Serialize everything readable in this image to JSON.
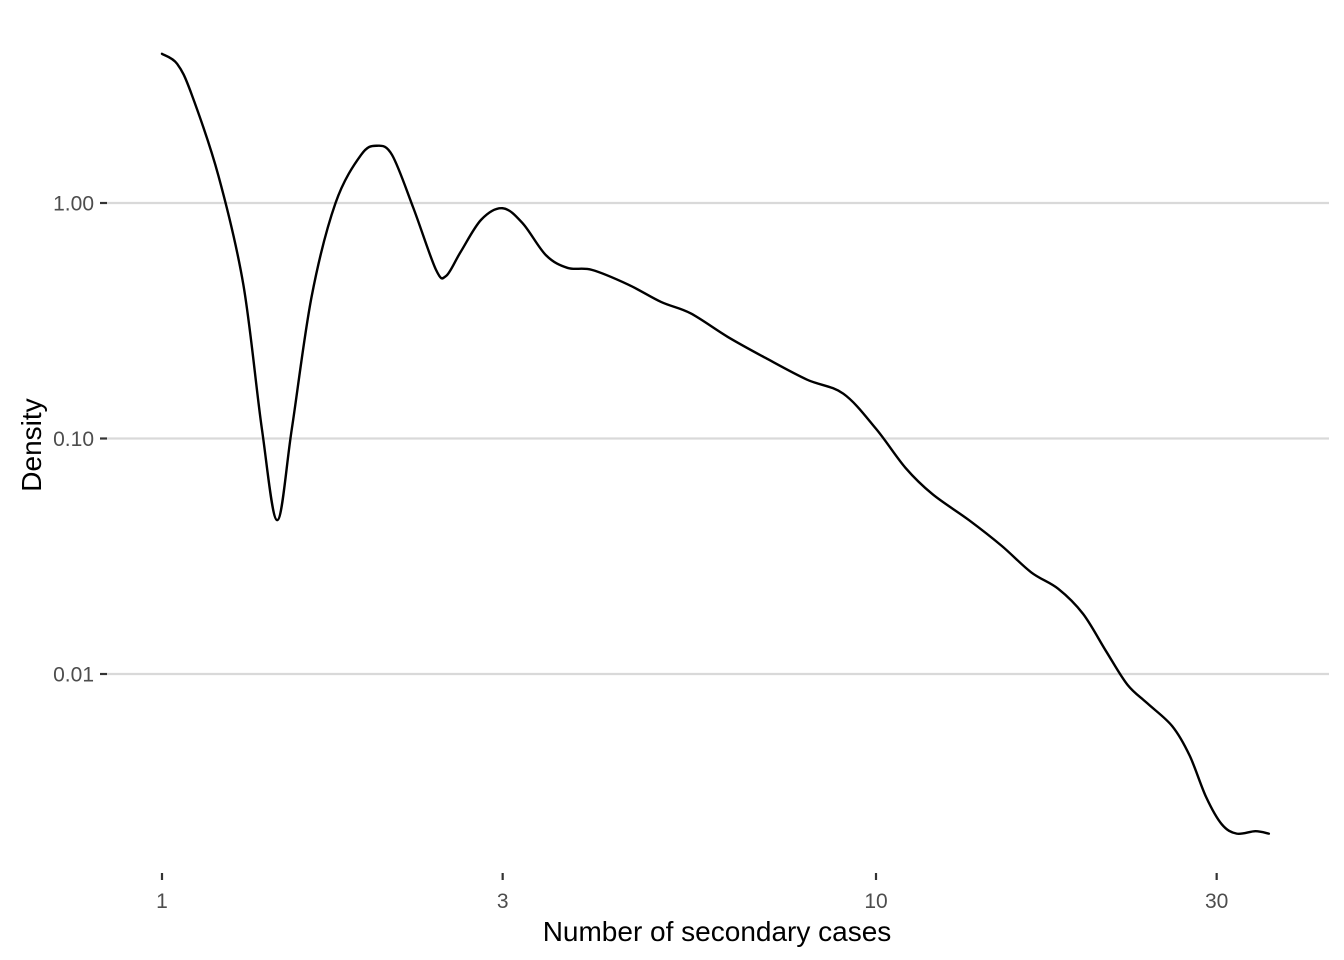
{
  "chart_data": {
    "type": "line",
    "title": "",
    "xlabel": "Number of secondary cases",
    "ylabel": "Density",
    "x_scale": "log10",
    "y_scale": "log10",
    "xlim": [
      0.94,
      44
    ],
    "ylim": [
      0.0015,
      7
    ],
    "x_ticks": [
      {
        "value": 1,
        "label": "1"
      },
      {
        "value": 3,
        "label": "3"
      },
      {
        "value": 10,
        "label": "10"
      },
      {
        "value": 30,
        "label": "30"
      }
    ],
    "y_ticks": [
      {
        "value": 1,
        "label": "1.00"
      },
      {
        "value": 0.1,
        "label": "0.10"
      },
      {
        "value": 0.01,
        "label": "0.01"
      }
    ],
    "grid": "horizontal-major",
    "legend": "none",
    "series": [
      {
        "color": "#000000",
        "points": [
          [
            1.0,
            4.3
          ],
          [
            1.05,
            3.9
          ],
          [
            1.1,
            2.9
          ],
          [
            1.2,
            1.3
          ],
          [
            1.3,
            0.45
          ],
          [
            1.38,
            0.11
          ],
          [
            1.45,
            0.045
          ],
          [
            1.52,
            0.11
          ],
          [
            1.62,
            0.4
          ],
          [
            1.75,
            1.0
          ],
          [
            1.9,
            1.6
          ],
          [
            2.0,
            1.75
          ],
          [
            2.1,
            1.6
          ],
          [
            2.25,
            0.95
          ],
          [
            2.42,
            0.52
          ],
          [
            2.5,
            0.49
          ],
          [
            2.62,
            0.62
          ],
          [
            2.8,
            0.85
          ],
          [
            3.0,
            0.95
          ],
          [
            3.2,
            0.82
          ],
          [
            3.45,
            0.6
          ],
          [
            3.7,
            0.53
          ],
          [
            4.0,
            0.52
          ],
          [
            4.5,
            0.45
          ],
          [
            5.0,
            0.38
          ],
          [
            5.5,
            0.34
          ],
          [
            6.2,
            0.27
          ],
          [
            7.0,
            0.22
          ],
          [
            8.0,
            0.178
          ],
          [
            9.0,
            0.155
          ],
          [
            10.0,
            0.11
          ],
          [
            11.0,
            0.075
          ],
          [
            12.0,
            0.058
          ],
          [
            13.5,
            0.045
          ],
          [
            15.0,
            0.035
          ],
          [
            16.5,
            0.027
          ],
          [
            18.0,
            0.023
          ],
          [
            19.5,
            0.018
          ],
          [
            21.0,
            0.0125
          ],
          [
            22.5,
            0.009
          ],
          [
            24.0,
            0.0075
          ],
          [
            26.0,
            0.006
          ],
          [
            27.5,
            0.0045
          ],
          [
            29.0,
            0.003
          ],
          [
            30.5,
            0.0023
          ],
          [
            32.0,
            0.0021
          ],
          [
            34.0,
            0.00215
          ],
          [
            35.5,
            0.0021
          ]
        ]
      }
    ]
  }
}
